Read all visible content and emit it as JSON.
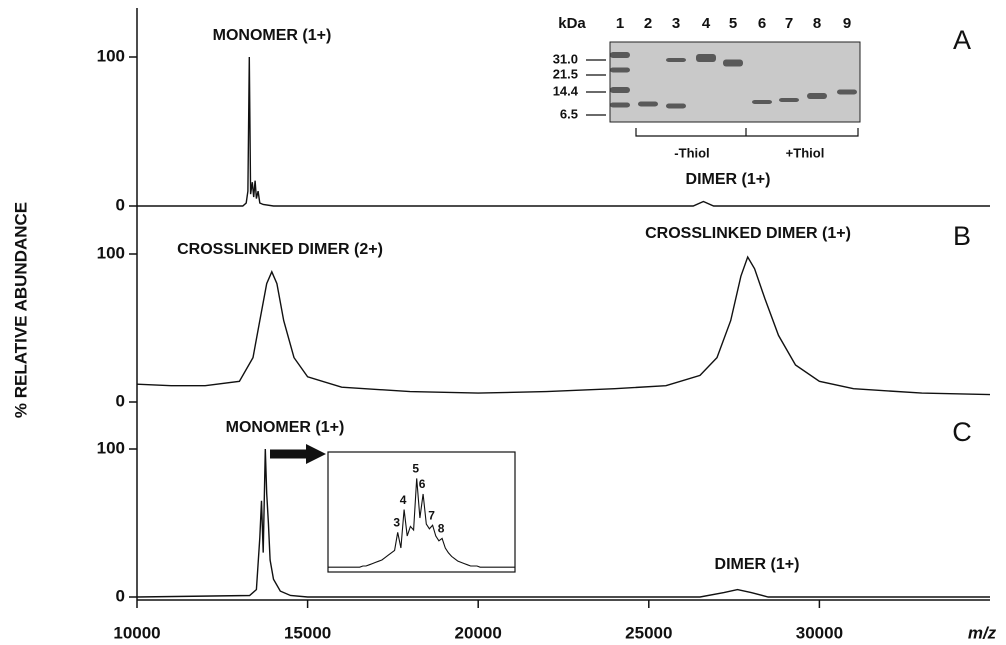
{
  "chart_data": [
    {
      "type": "line",
      "panel": "A",
      "xlim": [
        10000,
        35000
      ],
      "ylim": [
        0,
        100
      ],
      "yticks": [
        0,
        100
      ],
      "annotations": [
        "MONOMER (1+)",
        "DIMER (1+)"
      ],
      "x": [
        10000,
        13100,
        13200,
        13250,
        13290,
        13330,
        13380,
        13420,
        13460,
        13500,
        13550,
        13600,
        13700,
        14000,
        26300,
        26600,
        26900,
        35000
      ],
      "values": [
        0,
        0,
        2,
        10,
        100,
        8,
        16,
        6,
        17,
        5,
        10,
        2,
        1,
        0,
        0,
        3,
        0,
        0
      ],
      "gel": {
        "unit": "kDa",
        "lanes": [
          1,
          2,
          3,
          4,
          5,
          6,
          7,
          8,
          9
        ],
        "mw_markers": [
          {
            "value": 31,
            "label": "31.0"
          },
          21.5,
          14.4,
          6.5
        ],
        "groups": [
          "-Thiol",
          "+Thiol"
        ]
      }
    },
    {
      "type": "line",
      "panel": "B",
      "xlim": [
        10000,
        35000
      ],
      "ylim": [
        0,
        100
      ],
      "yticks": [
        0,
        100
      ],
      "ylabel": "% RELATIVE ABUNDANCE",
      "annotations": [
        "CROSSLINKED DIMER (2+)",
        "CROSSLINKED DIMER (1+)"
      ],
      "x": [
        10000,
        11000,
        12000,
        13000,
        13400,
        13600,
        13800,
        13950,
        14100,
        14300,
        14600,
        15000,
        16000,
        18000,
        20000,
        22000,
        24000,
        25500,
        26500,
        27000,
        27400,
        27700,
        27900,
        28100,
        28400,
        28800,
        29300,
        30000,
        31000,
        33000,
        35000
      ],
      "values": [
        12,
        11,
        11,
        14,
        30,
        55,
        80,
        88,
        80,
        55,
        30,
        17,
        10,
        7,
        6,
        7,
        9,
        11,
        18,
        30,
        55,
        85,
        98,
        90,
        70,
        45,
        25,
        14,
        9,
        6,
        5
      ]
    },
    {
      "type": "line",
      "panel": "C",
      "xlim": [
        10000,
        35000
      ],
      "ylim": [
        0,
        100
      ],
      "yticks": [
        0,
        100
      ],
      "xticks": [
        10000,
        15000,
        20000,
        25000,
        30000
      ],
      "xlabel": "m/z",
      "annotations": [
        "MONOMER (1+)",
        "DIMER (1+)"
      ],
      "x": [
        10000,
        13300,
        13500,
        13600,
        13650,
        13700,
        13760,
        13800,
        13850,
        13900,
        14000,
        14200,
        14500,
        15000,
        26500,
        27200,
        27600,
        28000,
        28500,
        35000
      ],
      "values": [
        0,
        1,
        5,
        40,
        65,
        30,
        100,
        70,
        50,
        25,
        12,
        4,
        1,
        0,
        0,
        3,
        5,
        3,
        0,
        0
      ],
      "inset": {
        "peak_labels": [
          3,
          4,
          5,
          6,
          7,
          8
        ],
        "values": [
          4,
          4,
          4,
          4,
          4,
          4,
          4,
          4,
          4,
          4,
          4,
          5,
          5,
          6,
          7,
          8,
          9,
          10,
          12,
          14,
          16,
          18,
          33,
          20,
          52,
          30,
          38,
          35,
          78,
          45,
          65,
          40,
          36,
          39,
          30,
          26,
          28,
          20,
          16,
          13,
          11,
          9,
          8,
          7,
          6,
          5,
          5,
          5,
          4,
          4,
          4,
          4,
          4,
          4,
          4,
          4,
          4,
          4,
          4,
          4
        ]
      }
    }
  ]
}
